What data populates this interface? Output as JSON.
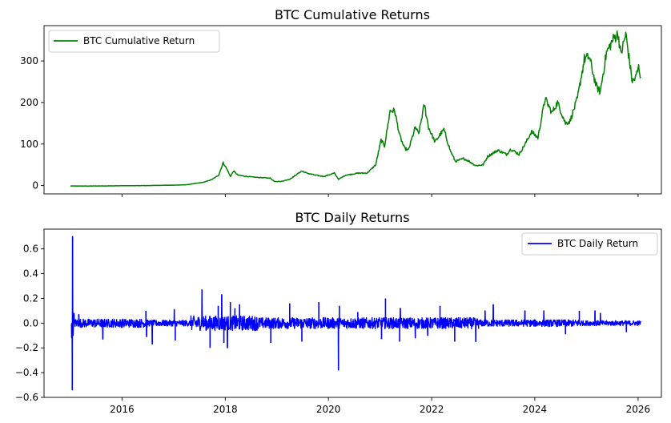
{
  "chart_data": [
    {
      "type": "line",
      "title": "BTC Cumulative Returns",
      "xlabel": "",
      "ylabel": "",
      "xlim": [
        "2014-06-28",
        "2026-06-15"
      ],
      "ylim": [
        -20,
        385
      ],
      "yticks": [
        0,
        100,
        200,
        300
      ],
      "ytick_labels": [
        "0",
        "100",
        "200",
        "300"
      ],
      "xtick_labels": [],
      "legend": "top-left",
      "grid": false,
      "series": [
        {
          "name": "BTC Cumulative Return",
          "color": "#008000",
          "points": [
            [
              "2015-01-01",
              -1
            ],
            [
              "2015-06-01",
              -1
            ],
            [
              "2016-01-01",
              -0.5
            ],
            [
              "2016-06-01",
              0
            ],
            [
              "2017-01-01",
              1
            ],
            [
              "2017-04-01",
              2
            ],
            [
              "2017-06-01",
              5
            ],
            [
              "2017-08-01",
              8
            ],
            [
              "2017-10-01",
              15
            ],
            [
              "2017-11-15",
              25
            ],
            [
              "2017-12-17",
              55
            ],
            [
              "2018-01-15",
              38
            ],
            [
              "2018-02-06",
              22
            ],
            [
              "2018-03-01",
              35
            ],
            [
              "2018-04-01",
              25
            ],
            [
              "2018-06-01",
              22
            ],
            [
              "2018-08-01",
              20
            ],
            [
              "2018-11-15",
              18
            ],
            [
              "2018-12-15",
              10
            ],
            [
              "2019-02-01",
              10
            ],
            [
              "2019-04-01",
              15
            ],
            [
              "2019-06-26",
              35
            ],
            [
              "2019-08-01",
              30
            ],
            [
              "2019-10-01",
              25
            ],
            [
              "2019-12-01",
              22
            ],
            [
              "2020-02-12",
              30
            ],
            [
              "2020-03-13",
              15
            ],
            [
              "2020-05-01",
              25
            ],
            [
              "2020-08-01",
              30
            ],
            [
              "2020-10-01",
              30
            ],
            [
              "2020-12-01",
              50
            ],
            [
              "2021-01-08",
              110
            ],
            [
              "2021-02-01",
              95
            ],
            [
              "2021-03-13",
              180
            ],
            [
              "2021-04-14",
              180
            ],
            [
              "2021-05-20",
              120
            ],
            [
              "2021-06-22",
              90
            ],
            [
              "2021-07-20",
              85
            ],
            [
              "2021-09-07",
              140
            ],
            [
              "2021-10-01",
              125
            ],
            [
              "2021-11-10",
              195
            ],
            [
              "2021-12-10",
              140
            ],
            [
              "2022-01-24",
              105
            ],
            [
              "2022-03-28",
              135
            ],
            [
              "2022-05-12",
              85
            ],
            [
              "2022-06-18",
              58
            ],
            [
              "2022-08-15",
              65
            ],
            [
              "2022-09-15",
              60
            ],
            [
              "2022-11-09",
              48
            ],
            [
              "2022-12-31",
              50
            ],
            [
              "2023-02-01",
              70
            ],
            [
              "2023-04-14",
              85
            ],
            [
              "2023-06-15",
              75
            ],
            [
              "2023-07-15",
              88
            ],
            [
              "2023-09-11",
              75
            ],
            [
              "2023-10-25",
              100
            ],
            [
              "2023-12-08",
              130
            ],
            [
              "2024-01-23",
              115
            ],
            [
              "2024-03-14",
              210
            ],
            [
              "2024-05-01",
              175
            ],
            [
              "2024-06-10",
              200
            ],
            [
              "2024-08-05",
              150
            ],
            [
              "2024-09-06",
              155
            ],
            [
              "2024-10-29",
              210
            ],
            [
              "2024-12-17",
              305
            ],
            [
              "2025-01-20",
              310
            ],
            [
              "2025-03-10",
              240
            ],
            [
              "2025-04-08",
              225
            ],
            [
              "2025-05-22",
              320
            ],
            [
              "2025-07-14",
              355
            ],
            [
              "2025-08-13",
              365
            ],
            [
              "2025-09-01",
              315
            ],
            [
              "2025-10-06",
              365
            ],
            [
              "2025-11-21",
              250
            ],
            [
              "2025-12-15",
              260
            ],
            [
              "2026-01-05",
              285
            ],
            [
              "2026-01-20",
              262
            ]
          ]
        }
      ]
    },
    {
      "type": "line",
      "title": "BTC Daily Returns",
      "xlabel": "",
      "ylabel": "",
      "xlim": [
        "2014-06-28",
        "2026-06-15"
      ],
      "ylim": [
        -0.6,
        0.76
      ],
      "yticks": [
        -0.6,
        -0.4,
        -0.2,
        0.0,
        0.2,
        0.4,
        0.6
      ],
      "ytick_labels": [
        "−0.6",
        "−0.4",
        "−0.2",
        "0.0",
        "0.2",
        "0.4",
        "0.6"
      ],
      "xticks": [
        "2016-01-01",
        "2018-01-01",
        "2020-01-01",
        "2022-01-01",
        "2024-01-01",
        "2026-01-01"
      ],
      "xtick_labels": [
        "2016",
        "2018",
        "2020",
        "2022",
        "2024",
        "2026"
      ],
      "legend": "top-right",
      "grid": false,
      "series": [
        {
          "name": "BTC Daily Return",
          "color": "#0000ff",
          "spikes": [
            [
              "2015-01-10",
              -0.12
            ],
            [
              "2015-01-14",
              -0.54
            ],
            [
              "2015-01-16",
              0.7
            ],
            [
              "2015-01-20",
              -0.1
            ],
            [
              "2015-01-26",
              0.08
            ],
            [
              "2015-03-01",
              0.07
            ],
            [
              "2015-08-18",
              -0.13
            ],
            [
              "2016-06-18",
              0.1
            ],
            [
              "2016-06-23",
              -0.11
            ],
            [
              "2016-08-02",
              -0.17
            ],
            [
              "2017-01-05",
              0.11
            ],
            [
              "2017-01-12",
              -0.14
            ],
            [
              "2017-07-20",
              0.27
            ],
            [
              "2017-09-15",
              -0.2
            ],
            [
              "2017-11-12",
              0.14
            ],
            [
              "2017-12-07",
              0.23
            ],
            [
              "2017-12-22",
              -0.16
            ],
            [
              "2018-01-16",
              -0.2
            ],
            [
              "2018-02-06",
              0.17
            ],
            [
              "2018-03-10",
              0.12
            ],
            [
              "2018-04-12",
              0.15
            ],
            [
              "2018-11-19",
              -0.16
            ],
            [
              "2019-04-02",
              0.16
            ],
            [
              "2019-06-27",
              -0.15
            ],
            [
              "2019-10-25",
              0.17
            ],
            [
              "2020-03-12",
              -0.38
            ],
            [
              "2020-03-19",
              0.14
            ],
            [
              "2020-07-27",
              0.09
            ],
            [
              "2021-01-11",
              -0.13
            ],
            [
              "2021-02-08",
              0.2
            ],
            [
              "2021-05-19",
              -0.15
            ],
            [
              "2021-05-24",
              0.12
            ],
            [
              "2021-09-07",
              -0.12
            ],
            [
              "2021-12-04",
              -0.1
            ],
            [
              "2022-03-01",
              0.14
            ],
            [
              "2022-06-13",
              -0.15
            ],
            [
              "2022-11-09",
              -0.15
            ],
            [
              "2023-01-14",
              0.1
            ],
            [
              "2023-03-13",
              0.15
            ],
            [
              "2023-10-23",
              0.1
            ],
            [
              "2024-03-05",
              0.1
            ],
            [
              "2024-08-05",
              -0.09
            ],
            [
              "2024-11-11",
              0.1
            ],
            [
              "2025-03-02",
              0.1
            ],
            [
              "2025-04-09",
              0.08
            ],
            [
              "2025-10-10",
              -0.07
            ]
          ]
        }
      ]
    }
  ]
}
